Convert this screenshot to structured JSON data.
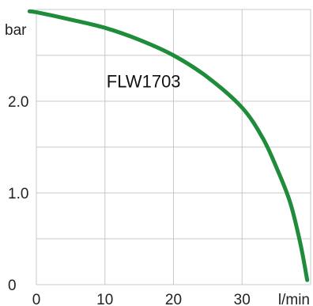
{
  "chart_data": {
    "type": "line",
    "title": "",
    "xlabel": "l/min",
    "ylabel": "bar",
    "xlim": [
      0,
      40
    ],
    "ylim": [
      0,
      3.0
    ],
    "grid": true,
    "x_ticks": [
      {
        "value": 0,
        "label": "0"
      },
      {
        "value": 10,
        "label": "10"
      },
      {
        "value": 20,
        "label": "20"
      },
      {
        "value": 30,
        "label": "30"
      }
    ],
    "y_ticks": [
      {
        "value": 0,
        "label": "0"
      },
      {
        "value": 1.0,
        "label": "1.0"
      },
      {
        "value": 2.0,
        "label": "2.0"
      }
    ],
    "grid_x": [
      0,
      10,
      20,
      30,
      40
    ],
    "grid_y": [
      0,
      0.5,
      1.0,
      1.5,
      2.0,
      2.5,
      3.0
    ],
    "series": [
      {
        "name": "FLW1703",
        "color": "#1e8c3a",
        "x": [
          -1,
          0,
          5,
          10,
          15,
          20,
          25,
          30,
          33,
          35,
          37,
          38.5,
          39.5
        ],
        "y": [
          2.98,
          2.97,
          2.89,
          2.8,
          2.67,
          2.5,
          2.26,
          1.93,
          1.6,
          1.28,
          0.9,
          0.45,
          0.05
        ]
      }
    ],
    "annotations": [
      {
        "text": "FLW1703",
        "x": 16,
        "y": 2.15
      }
    ]
  }
}
